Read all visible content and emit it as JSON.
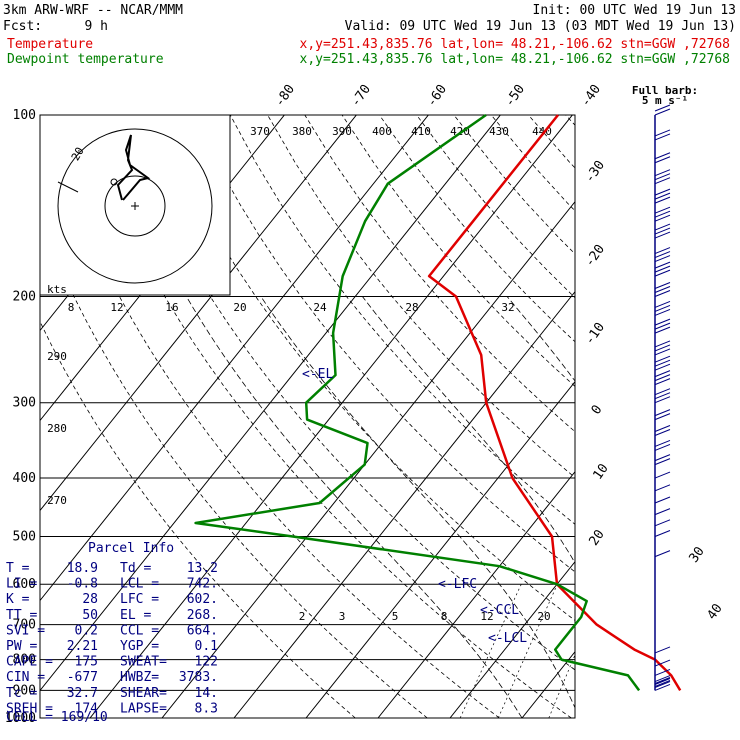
{
  "header": {
    "model": "3km ARW-WRF -- NCAR/MMM",
    "init": "Init: 00 UTC Wed 19 Jun 13",
    "fcst_label": "Fcst:",
    "fcst_value": "9 h",
    "valid": "Valid: 09 UTC Wed 19 Jun 13 (03 MDT Wed 19 Jun 13)",
    "temp_label": "Temperature",
    "temp_info": "x,y=251.43,835.76   lat,lon= 48.21,-106.62  stn=GGW ,72768",
    "dew_label": "Dewpoint temperature",
    "dew_info": "x,y=251.43,835.76   lat,lon= 48.21,-106.62  stn=GGW ,72768"
  },
  "barb_header": {
    "line1": "Full barb:",
    "line2": "5 m s⁻¹"
  },
  "parcel": {
    "title": "Parcel Info",
    "rows": [
      [
        "T   =",
        "18.9",
        "Td  =",
        "13.2"
      ],
      [
        "LI  =",
        "-0.8",
        "LCL =",
        "742."
      ],
      [
        "K   =",
        "28",
        "LFC =",
        "602."
      ],
      [
        "TT  =",
        "50",
        "EL  =",
        "268."
      ],
      [
        "SVI =",
        "0.2",
        "CCL =",
        "664."
      ],
      [
        "PW  =",
        "2.21",
        "YGP =",
        "0.1"
      ],
      [
        "CAPE =",
        "175",
        "SWEAT=",
        "122"
      ],
      [
        "CIN  =",
        "-677",
        "HWBZ=",
        "3783."
      ],
      [
        "Tc  =",
        "32.7",
        "SHEAR=",
        "14."
      ],
      [
        "SREH =",
        "174",
        "LAPSE=",
        "8.3"
      ]
    ],
    "cell": "CELL = 169/10"
  },
  "markers": {
    "el": "<-EL",
    "lfc": "<-LFC",
    "ccl": "<-CCL",
    "lcl": "<-LCL"
  },
  "hodograph": {
    "ring_label": "20",
    "kts_label": "kts",
    "speed_ticks": [
      "8",
      "12",
      "16",
      "20",
      "24",
      "28",
      "32"
    ]
  },
  "colors": {
    "temperature": "#e00000",
    "dewpoint": "#008000",
    "wind": "#000080"
  },
  "chart_data": {
    "type": "line",
    "ylabel": "",
    "pressure_ticks": [
      "100",
      "200",
      "300",
      "400",
      "500",
      "600",
      "700",
      "800",
      "900",
      "1000"
    ],
    "ylim": [
      1000,
      100
    ],
    "temp_ticks": [
      "-80",
      "-70",
      "-60",
      "-50",
      "-40",
      "-30",
      "-20",
      "-10",
      "0",
      "10",
      "20",
      "30",
      "40"
    ],
    "theta_labels": [
      "370",
      "380",
      "390",
      "400",
      "410",
      "420",
      "430",
      "440"
    ],
    "mixing_ratio_labels": [
      "2",
      "3",
      "5",
      "8",
      "12",
      "20"
    ],
    "series": [
      {
        "name": "Temperature",
        "points": [
          [
            100,
            -62
          ],
          [
            150,
            -62
          ],
          [
            185,
            -62
          ],
          [
            200,
            -56
          ],
          [
            250,
            -46
          ],
          [
            300,
            -40
          ],
          [
            400,
            -28
          ],
          [
            500,
            -16
          ],
          [
            600,
            -10
          ],
          [
            700,
            0
          ],
          [
            770,
            8
          ],
          [
            800,
            12
          ],
          [
            850,
            16
          ],
          [
            900,
            18.9
          ]
        ]
      },
      {
        "name": "Dewpoint temperature",
        "points": [
          [
            100,
            -72
          ],
          [
            130,
            -78
          ],
          [
            150,
            -77
          ],
          [
            185,
            -74
          ],
          [
            230,
            -69
          ],
          [
            270,
            -64
          ],
          [
            300,
            -65
          ],
          [
            320,
            -63
          ],
          [
            350,
            -52
          ],
          [
            380,
            -50
          ],
          [
            440,
            -52
          ],
          [
            475,
            -67
          ],
          [
            500,
            -52
          ],
          [
            560,
            -20
          ],
          [
            600,
            -10
          ],
          [
            640,
            -4
          ],
          [
            680,
            -3
          ],
          [
            770,
            -3
          ],
          [
            800,
            -1
          ],
          [
            850,
            10
          ],
          [
            900,
            13.2
          ]
        ]
      }
    ],
    "wind_barbs": [
      [
        100,
        2
      ],
      [
        110,
        2
      ],
      [
        120,
        2
      ],
      [
        130,
        3
      ],
      [
        140,
        3
      ],
      [
        150,
        3
      ],
      [
        160,
        3
      ],
      [
        175,
        3
      ],
      [
        185,
        3
      ],
      [
        200,
        3
      ],
      [
        215,
        3
      ],
      [
        230,
        3
      ],
      [
        250,
        3
      ],
      [
        265,
        3
      ],
      [
        280,
        3
      ],
      [
        300,
        3
      ],
      [
        320,
        2
      ],
      [
        340,
        2
      ],
      [
        360,
        2
      ],
      [
        380,
        2
      ],
      [
        400,
        1
      ],
      [
        420,
        1
      ],
      [
        440,
        1
      ],
      [
        460,
        1
      ],
      [
        480,
        1
      ],
      [
        500,
        1
      ],
      [
        540,
        1
      ],
      [
        580,
        0
      ],
      [
        620,
        0
      ],
      [
        660,
        0
      ],
      [
        700,
        0
      ],
      [
        740,
        0
      ],
      [
        780,
        1
      ],
      [
        820,
        1
      ],
      [
        850,
        1
      ],
      [
        870,
        1
      ],
      [
        880,
        1
      ],
      [
        890,
        2
      ],
      [
        900,
        2
      ]
    ]
  }
}
